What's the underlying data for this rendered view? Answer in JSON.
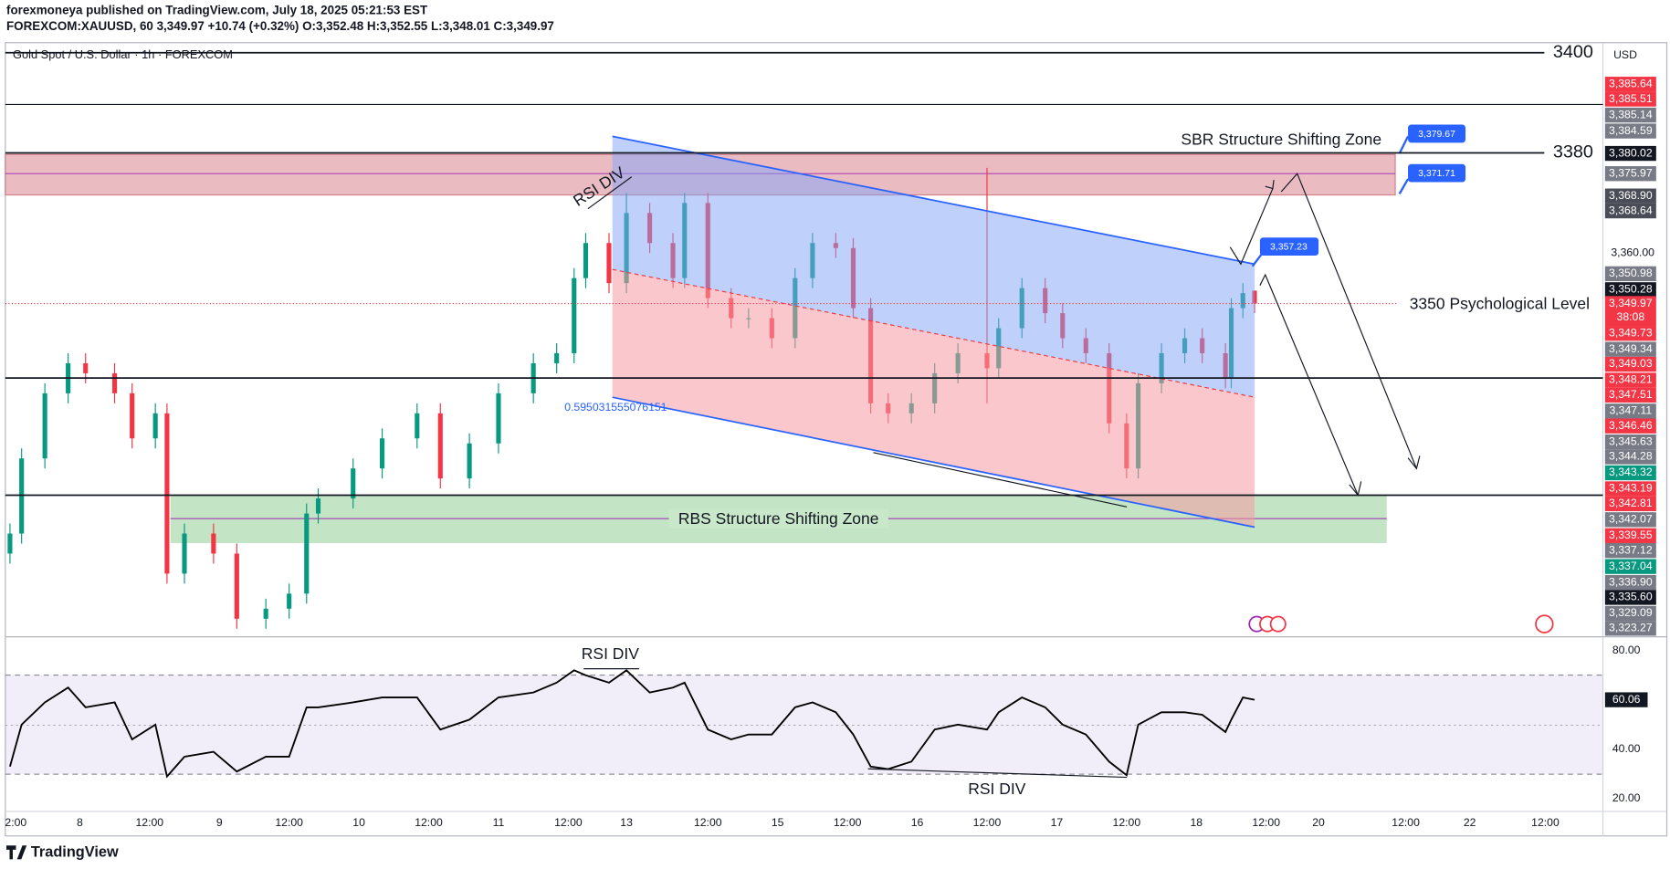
{
  "header": {
    "publisher": "forexmoneya published on TradingView.com, July 18, 2025 05:21:53 EST",
    "symbol_line": "FOREXCOM:XAUUSD, 60  3,349.97  +10.74 (+0.32%)  O:3,352.48  H:3,352.55  L:3,348.01  C:3,349.97"
  },
  "footer": {
    "brand": "TradingView"
  },
  "chart_data": [
    {
      "type": "candlestick",
      "title": "Gold Spot / U.S. Dollar · 1h · FOREXCOM",
      "axis_unit": "USD",
      "up_color": "#089981",
      "down_color": "#f23645",
      "x": [
        -12,
        -10,
        -6,
        -2,
        1,
        6,
        9,
        13,
        15,
        18,
        23,
        27,
        32,
        36,
        39,
        41,
        47,
        52,
        58,
        62,
        67,
        72,
        78,
        82,
        85,
        87,
        91,
        94,
        98,
        102,
        104,
        108,
        112,
        115,
        119,
        123,
        126,
        130,
        133,
        136,
        139,
        143,
        147,
        151,
        156,
        158,
        162,
        166,
        169,
        173,
        177,
        180,
        182,
        186,
        190,
        193,
        197,
        198,
        200,
        202
      ],
      "open": [
        3300,
        3304,
        3319,
        3332,
        3338,
        3336,
        3332,
        3323,
        3328,
        3296,
        3304,
        3300,
        3287,
        3289,
        3292,
        3308,
        3311,
        3317,
        3323,
        3328,
        3315,
        3322,
        3332,
        3338,
        3340,
        3355,
        3362,
        3354,
        3368,
        3362,
        3355,
        3370,
        3351,
        3347,
        3347,
        3343,
        3355,
        3362,
        3361,
        3349,
        3330,
        3328,
        3330,
        3336,
        3340,
        3337,
        3345,
        3353,
        3348,
        3343,
        3340,
        3326,
        3317,
        3334,
        3340,
        3343,
        3340,
        3335,
        3349,
        3352.48
      ],
      "high": [
        3306,
        3321,
        3334,
        3340,
        3340,
        3338,
        3334,
        3330,
        3330,
        3306,
        3306,
        3302,
        3291,
        3294,
        3310,
        3313,
        3319,
        3325,
        3330,
        3330,
        3324,
        3334,
        3340,
        3342,
        3357,
        3364,
        3364,
        3372,
        3370,
        3364,
        3372,
        3372,
        3353,
        3349,
        3349,
        3357,
        3364,
        3364,
        3363,
        3351,
        3332,
        3332,
        3338,
        3342,
        3377,
        3347,
        3355,
        3355,
        3350,
        3345,
        3342,
        3328,
        3336,
        3342,
        3345,
        3345,
        3342,
        3351,
        3354,
        3352.55
      ],
      "low": [
        3298,
        3302,
        3317,
        3330,
        3334,
        3330,
        3321,
        3321,
        3294,
        3294,
        3298,
        3285,
        3285,
        3287,
        3290,
        3306,
        3309,
        3315,
        3321,
        3313,
        3313,
        3320,
        3330,
        3336,
        3338,
        3353,
        3352,
        3352,
        3360,
        3353,
        3353,
        3349,
        3345,
        3345,
        3341,
        3341,
        3353,
        3359,
        3347,
        3328,
        3326,
        3326,
        3328,
        3334,
        3330,
        3335,
        3343,
        3346,
        3341,
        3338,
        3324,
        3315,
        3315,
        3332,
        3338,
        3338,
        3333,
        3333,
        3347,
        3348.01
      ],
      "close": [
        3304,
        3319,
        3332,
        3338,
        3336,
        3332,
        3323,
        3328,
        3296,
        3304,
        3300,
        3287,
        3289,
        3292,
        3308,
        3311,
        3317,
        3323,
        3328,
        3315,
        3322,
        3332,
        3338,
        3340,
        3355,
        3362,
        3354,
        3368,
        3362,
        3355,
        3370,
        3351,
        3347,
        3347,
        3343,
        3355,
        3362,
        3361,
        3349,
        3330,
        3328,
        3330,
        3336,
        3340,
        3337,
        3345,
        3353,
        3348,
        3343,
        3340,
        3326,
        3317,
        3334,
        3340,
        3343,
        3340,
        3335,
        3349,
        3352,
        3349.97
      ],
      "xlim": [
        -12.8,
        261.9
      ],
      "ylim": [
        3283.6,
        3402
      ],
      "yticks": [
        {
          "value": 3360,
          "label": "3,360.00"
        }
      ],
      "xticks": [
        {
          "value": -11,
          "label": "2:00"
        },
        {
          "value": 0,
          "label": "8"
        },
        {
          "value": 12,
          "label": "12:00"
        },
        {
          "value": 24,
          "label": "9"
        },
        {
          "value": 36,
          "label": "12:00"
        },
        {
          "value": 48,
          "label": "10"
        },
        {
          "value": 60,
          "label": "12:00"
        },
        {
          "value": 72,
          "label": "11"
        },
        {
          "value": 84,
          "label": "12:00"
        },
        {
          "value": 94,
          "label": "13"
        },
        {
          "value": 108,
          "label": "12:00"
        },
        {
          "value": 120,
          "label": "15"
        },
        {
          "value": 132,
          "label": "12:00"
        },
        {
          "value": 144,
          "label": "16"
        },
        {
          "value": 156,
          "label": "12:00"
        },
        {
          "value": 168,
          "label": "17"
        },
        {
          "value": 180,
          "label": "12:00"
        },
        {
          "value": 192,
          "label": "18"
        },
        {
          "value": 204,
          "label": "12:00"
        },
        {
          "value": 213,
          "label": "20"
        },
        {
          "value": 228,
          "label": "12:00"
        },
        {
          "value": 239,
          "label": "22"
        },
        {
          "value": 252,
          "label": "12:00"
        }
      ],
      "levels": [
        {
          "value": 3400,
          "label": "3400"
        },
        {
          "value": 3380,
          "label": "3380"
        }
      ],
      "annotations": {
        "sbr": "SBR Structure Shifting Zone",
        "rbs": "RBS Structure Shifting Zone",
        "psych": "3350 Psychological Level",
        "rsi_div": "RSI DIV",
        "fib": "0.595031555076151",
        "callout_1": "3,379.67",
        "callout_2": "3,371.71",
        "callout_3": "3,357.23"
      },
      "countdown": "38:08",
      "price_tags": [
        {
          "label": "3,385.64",
          "color": "#f23645"
        },
        {
          "label": "3,385.51",
          "color": "#f23645"
        },
        {
          "label": "3,385.14",
          "color": "#787b86"
        },
        {
          "label": "3,384.59",
          "color": "#787b86"
        },
        {
          "label": "3,380.02",
          "color": "#131722"
        },
        {
          "label": "3,375.97",
          "color": "#787b86"
        },
        {
          "label": "3,368.90",
          "color": "#4a4d57"
        },
        {
          "label": "3,368.64",
          "color": "#4a4d57"
        },
        {
          "label": "3,350.98",
          "color": "#787b86"
        },
        {
          "label": "3,350.28",
          "color": "#131722"
        },
        {
          "label": "3,349.97",
          "color": "#f23645"
        },
        {
          "label": "3,349.73",
          "color": "#f23645"
        },
        {
          "label": "3,349.34",
          "color": "#787b86"
        },
        {
          "label": "3,349.03",
          "color": "#f23645"
        },
        {
          "label": "3,348.21",
          "color": "#f23645"
        },
        {
          "label": "3,347.51",
          "color": "#f23645"
        },
        {
          "label": "3,347.11",
          "color": "#787b86"
        },
        {
          "label": "3,346.46",
          "color": "#f23645"
        },
        {
          "label": "3,345.63",
          "color": "#787b86"
        },
        {
          "label": "3,344.28",
          "color": "#787b86"
        },
        {
          "label": "3,343.32",
          "color": "#089981"
        },
        {
          "label": "3,343.19",
          "color": "#f23645"
        },
        {
          "label": "3,342.81",
          "color": "#f23645"
        },
        {
          "label": "3,342.07",
          "color": "#787b86"
        },
        {
          "label": "3,339.55",
          "color": "#f23645"
        },
        {
          "label": "3,337.12",
          "color": "#787b86"
        },
        {
          "label": "3,337.04",
          "color": "#089981"
        },
        {
          "label": "3,336.90",
          "color": "#787b86"
        },
        {
          "label": "3,335.60",
          "color": "#131722"
        },
        {
          "label": "3,329.09",
          "color": "#787b86"
        },
        {
          "label": "3,323.27",
          "color": "#787b86"
        }
      ]
    },
    {
      "type": "line",
      "color": "#000000",
      "x": [
        -12,
        -10,
        -6,
        -2,
        1,
        6,
        9,
        13,
        15,
        18,
        23,
        27,
        32,
        36,
        39,
        41,
        47,
        52,
        58,
        62,
        67,
        72,
        78,
        82,
        85,
        87,
        91,
        94,
        98,
        102,
        104,
        108,
        112,
        115,
        119,
        123,
        126,
        130,
        133,
        136,
        139,
        143,
        147,
        151,
        156,
        158,
        162,
        166,
        169,
        173,
        177,
        180,
        182,
        186,
        190,
        193,
        197,
        198,
        200,
        202
      ],
      "values": [
        33,
        50,
        59,
        65,
        57,
        59,
        44,
        50,
        29,
        37,
        39,
        31,
        37,
        37,
        57,
        57,
        59,
        61,
        61,
        48,
        52,
        61,
        63,
        67,
        72,
        70,
        67,
        72,
        63,
        65,
        67,
        48,
        44,
        46,
        46,
        57,
        59,
        55,
        46,
        33,
        32,
        35,
        48,
        50,
        48,
        55,
        61,
        57,
        50,
        46,
        35,
        29.5,
        50,
        55,
        55,
        54,
        47,
        52,
        61,
        60.06
      ],
      "xlim": [
        -12.8,
        261.9
      ],
      "ylim": [
        15.7,
        84.7
      ],
      "yticks": [
        {
          "value": 80,
          "label": "80.00"
        },
        {
          "value": 40,
          "label": "40.00"
        },
        {
          "value": 20,
          "label": "20.00"
        }
      ],
      "annotations": {
        "rsi_div_top": "RSI DIV",
        "rsi_div_bottom": "RSI DIV"
      }
    }
  ]
}
